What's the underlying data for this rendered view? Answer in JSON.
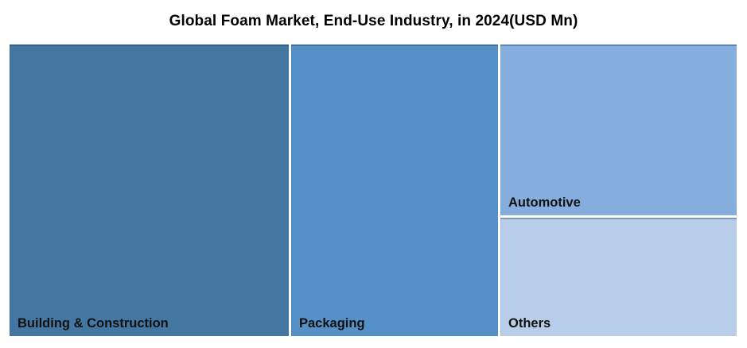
{
  "chart": {
    "title": "Global Foam Market, End-Use Industry, in 2024(USD Mn)"
  },
  "chart_data": {
    "type": "treemap",
    "title": "Global Foam Market, End-Use Industry, in 2024(USD Mn)",
    "categories": [
      "Building & Construction",
      "Packaging",
      "Automotive",
      "Others"
    ],
    "area_share_pct_estimated": [
      38.6,
      28.5,
      19.1,
      13.3
    ],
    "colors": [
      "#4377A1",
      "#5591C7",
      "#85ADDE",
      "#B8CDE8"
    ],
    "legend": "none",
    "layout_hint": "three columns left-to-right by size; third column split vertically into Automotive (top) and Others (bottom); bold black labels at bottom-left of each cell; thin white gaps between cells"
  }
}
